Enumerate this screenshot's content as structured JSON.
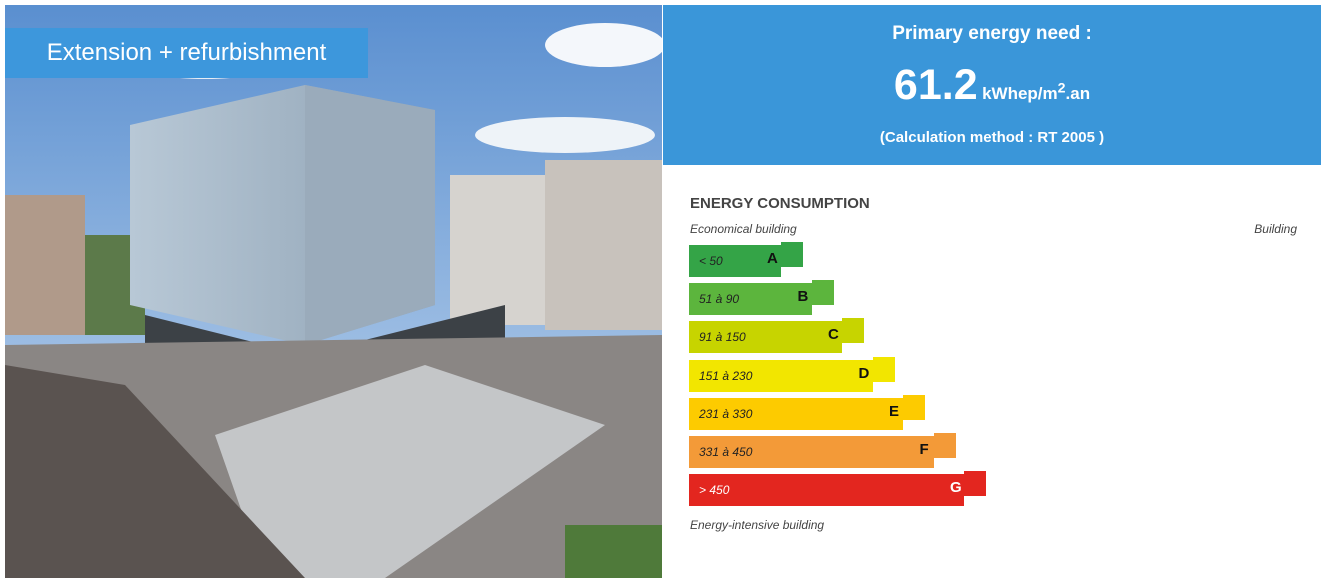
{
  "photo": {
    "caption": "Extension + refurbishment"
  },
  "energy_need": {
    "title": "Primary energy need :",
    "value": "61.2",
    "unit_base": "kWhep/m",
    "unit_sup": "2",
    "unit_tail": ".an",
    "method": "(Calculation method : RT 2005 )"
  },
  "consumption": {
    "heading": "ENERGY CONSUMPTION",
    "top_left": "Economical building",
    "top_right": "Building",
    "bottom_left": "Energy-intensive building",
    "classes": [
      {
        "range": "< 50",
        "letter": "A",
        "color": "#34a447"
      },
      {
        "range": "51 à 90",
        "letter": "B",
        "color": "#5cb53d"
      },
      {
        "range": "91 à 150",
        "letter": "C",
        "color": "#c7d400"
      },
      {
        "range": "151 à 230",
        "letter": "D",
        "color": "#f2e600"
      },
      {
        "range": "231 à 330",
        "letter": "E",
        "color": "#fdcb00"
      },
      {
        "range": "331 à 450",
        "letter": "F",
        "color": "#f39a38"
      },
      {
        "range": "> 450",
        "letter": "G",
        "color": "#e3261f"
      }
    ]
  }
}
